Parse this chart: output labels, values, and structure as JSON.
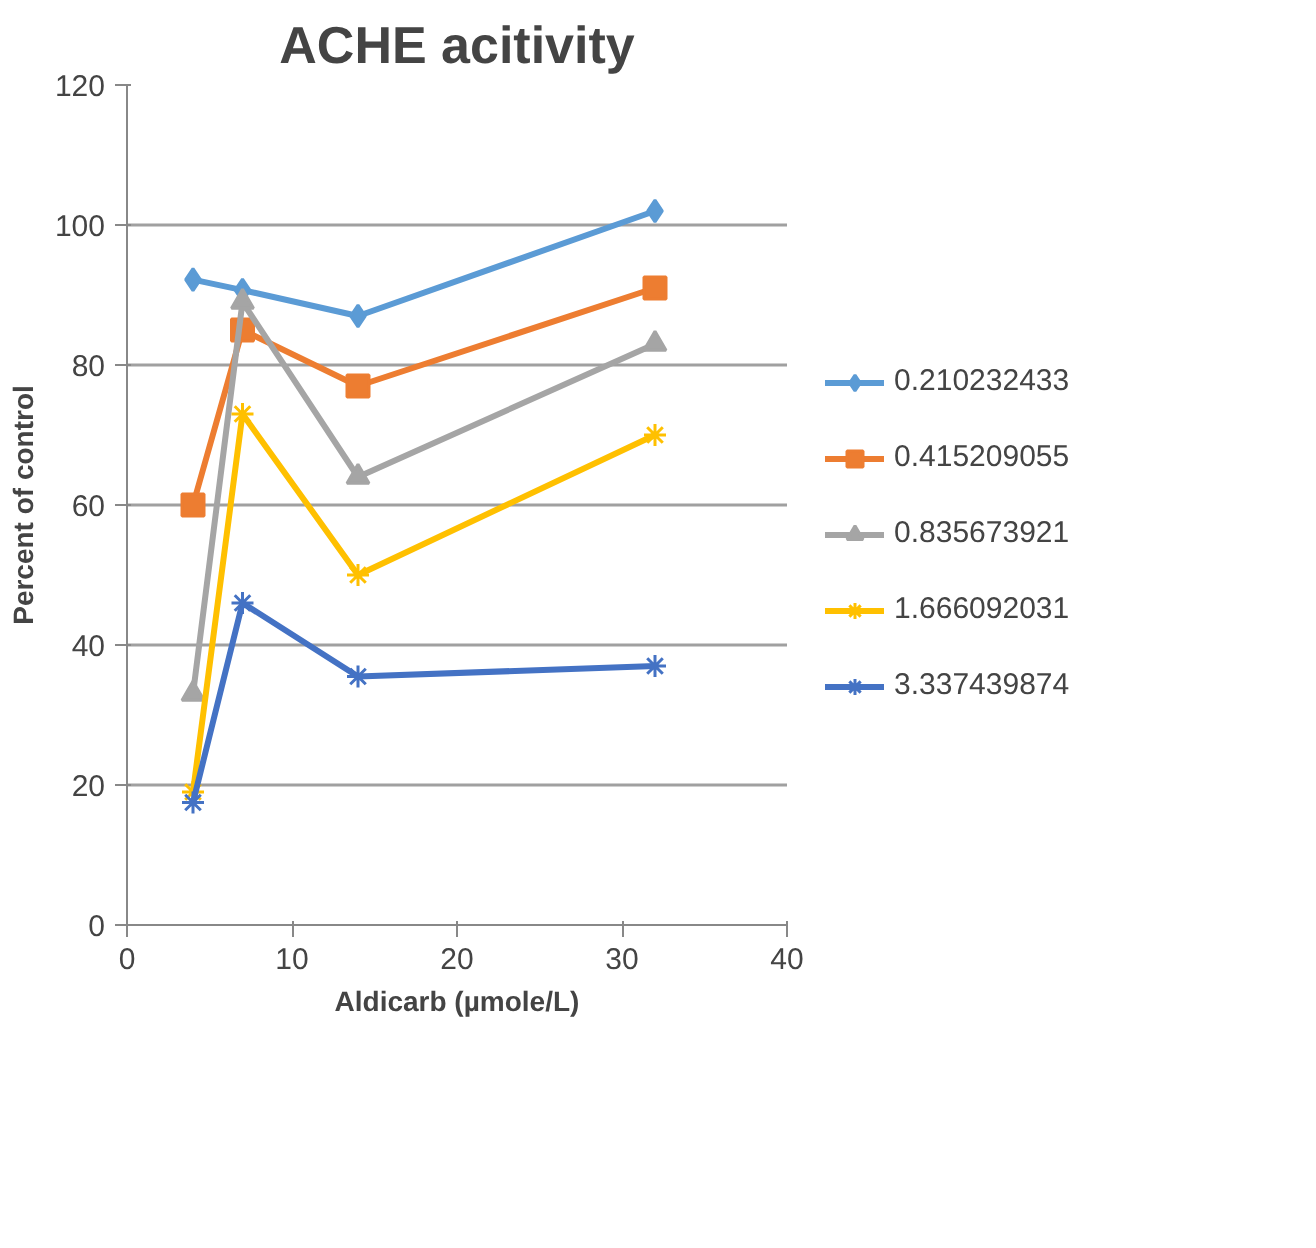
{
  "chart_data": {
    "type": "line",
    "title": "ACHE acitivity",
    "xlabel": "Aldicarb (µmole/L)",
    "ylabel": "Percent of control",
    "x": [
      4,
      7,
      14,
      32
    ],
    "series": [
      {
        "name": "0.210232433",
        "color": "#5b9bd5",
        "marker": "diamond",
        "values": [
          92.2,
          90.7,
          87,
          102
        ]
      },
      {
        "name": "0.415209055",
        "color": "#ed7d31",
        "marker": "square",
        "values": [
          60,
          85,
          77,
          91
        ]
      },
      {
        "name": "0.835673921",
        "color": "#a5a5a5",
        "marker": "triangle",
        "values": [
          33,
          89,
          64,
          83
        ]
      },
      {
        "name": "1.666092031",
        "color": "#ffc000",
        "marker": "cross",
        "values": [
          19,
          73,
          50,
          70
        ]
      },
      {
        "name": "3.337439874",
        "color": "#4472c4",
        "marker": "cross",
        "values": [
          17.5,
          46,
          35.5,
          37
        ]
      }
    ],
    "xlim": [
      0,
      40
    ],
    "xticks": [
      0,
      10,
      20,
      30,
      40
    ],
    "ylim": [
      0,
      120
    ],
    "yticks": [
      0,
      20,
      40,
      60,
      80,
      100,
      120
    ],
    "grid": "y",
    "legend": "right",
    "line_style": "solid"
  }
}
